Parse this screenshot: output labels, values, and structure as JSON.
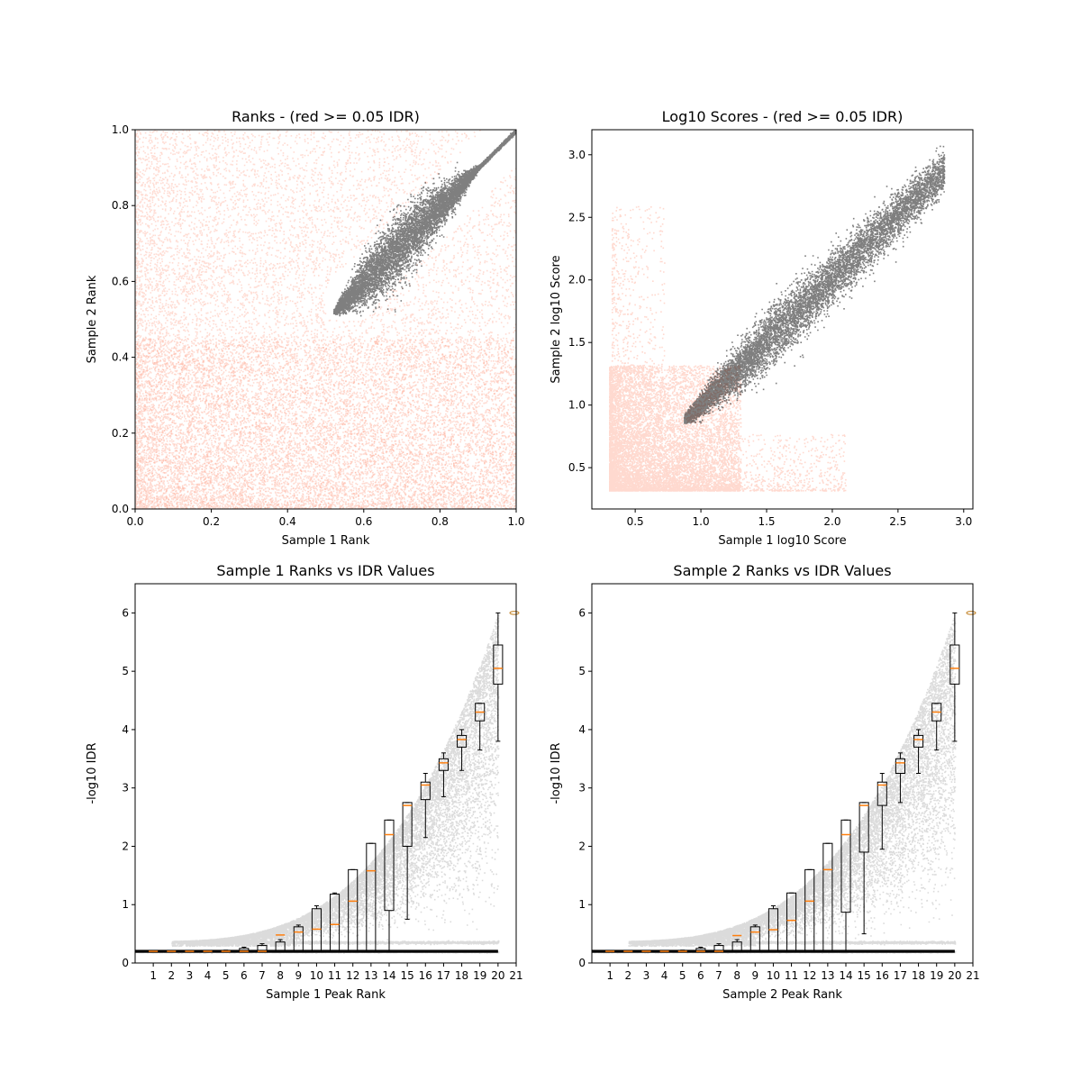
{
  "colors": {
    "red": "#FF9275",
    "black": "#000000",
    "median": "#FF7F0E",
    "flier": "#C07F20"
  },
  "chart_data": [
    {
      "type": "scatter",
      "title": "Ranks - (red >= 0.05 IDR)",
      "xlabel": "Sample 1 Rank",
      "ylabel": "Sample 2 Rank",
      "xlim": [
        0,
        1
      ],
      "ylim": [
        0,
        1
      ],
      "xticks": [
        "0.0",
        "0.2",
        "0.4",
        "0.6",
        "0.8",
        "1.0"
      ],
      "yticks": [
        "0.0",
        "0.2",
        "0.4",
        "0.6",
        "0.8",
        "1.0"
      ],
      "series": [
        {
          "color": "red",
          "region": "broad cloud, densest toward low ranks, x 0-1, y 0-1"
        },
        {
          "color": "black",
          "region": "tapering band from (0.52, 0.52) to (1.0, 1.0)"
        }
      ]
    },
    {
      "type": "scatter",
      "title": "Log10 Scores - (red >= 0.05 IDR)",
      "xlabel": "Sample 1 log10 Score",
      "ylabel": "Sample 2 log10 Score",
      "xlim": [
        0.17,
        3.07
      ],
      "ylim": [
        0.17,
        3.2
      ],
      "xticks": [
        "0.5",
        "1.0",
        "1.5",
        "2.0",
        "2.5",
        "3.0"
      ],
      "yticks": [
        "0.5",
        "1.0",
        "1.5",
        "2.0",
        "2.5",
        "3.0"
      ],
      "series": [
        {
          "color": "red",
          "region": "dense block x 0.3-1.3, y 0.32-1.4 plus sparse stripes"
        },
        {
          "color": "black",
          "region": "band from (0.87, 0.88) to (2.85, 2.9)"
        }
      ]
    },
    {
      "type": "box",
      "title": "Sample 1 Ranks vs IDR Values",
      "xlabel": "Sample 1 Peak Rank",
      "ylabel": "-log10 IDR",
      "xlim": [
        0,
        21
      ],
      "ylim": [
        0,
        6.5
      ],
      "xticks": [
        "1",
        "2",
        "3",
        "4",
        "5",
        "6",
        "7",
        "8",
        "9",
        "10",
        "11",
        "12",
        "13",
        "14",
        "15",
        "16",
        "17",
        "18",
        "19",
        "20",
        "21"
      ],
      "yticks": [
        "0",
        "1",
        "2",
        "3",
        "4",
        "5",
        "6"
      ],
      "medians": [
        0.2,
        0.2,
        0.2,
        0.2,
        0.2,
        0.2,
        0.2,
        0.48,
        0.53,
        0.58,
        0.66,
        1.06,
        1.58,
        2.2,
        2.7,
        3.05,
        3.43,
        3.83,
        4.3,
        5.05
      ],
      "q1": [
        0.2,
        0.2,
        0.2,
        0.2,
        0.2,
        0.2,
        0.2,
        0.2,
        0.2,
        0.2,
        0.2,
        0.2,
        0.2,
        0.9,
        2.0,
        2.8,
        3.3,
        3.7,
        4.15,
        4.78
      ],
      "q3": [
        0.2,
        0.2,
        0.2,
        0.2,
        0.21,
        0.25,
        0.3,
        0.36,
        0.62,
        0.93,
        1.18,
        1.6,
        2.05,
        2.45,
        2.75,
        3.1,
        3.5,
        3.9,
        4.45,
        5.45
      ],
      "whisker_low": [
        0.2,
        0.2,
        0.2,
        0.2,
        0.2,
        0.2,
        0.2,
        0.2,
        0.2,
        0.2,
        0.2,
        0.2,
        0.2,
        0.2,
        0.75,
        2.15,
        2.85,
        3.3,
        3.65,
        3.8
      ],
      "whisker_high": [
        0.2,
        0.2,
        0.2,
        0.2,
        0.22,
        0.27,
        0.33,
        0.4,
        0.65,
        0.98,
        1.2,
        1.6,
        2.05,
        2.45,
        2.75,
        3.25,
        3.6,
        4.0,
        4.45,
        6.0
      ]
    },
    {
      "type": "box",
      "title": "Sample 2 Ranks vs IDR Values",
      "xlabel": "Sample 2 Peak Rank",
      "ylabel": "-log10 IDR",
      "xlim": [
        0,
        21
      ],
      "ylim": [
        0,
        6.5
      ],
      "xticks": [
        "1",
        "2",
        "3",
        "4",
        "5",
        "6",
        "7",
        "8",
        "9",
        "10",
        "11",
        "12",
        "13",
        "14",
        "15",
        "16",
        "17",
        "18",
        "19",
        "20",
        "21"
      ],
      "yticks": [
        "0",
        "1",
        "2",
        "3",
        "4",
        "5",
        "6"
      ],
      "medians": [
        0.2,
        0.2,
        0.2,
        0.2,
        0.2,
        0.2,
        0.2,
        0.47,
        0.53,
        0.57,
        0.73,
        1.06,
        1.6,
        2.2,
        2.7,
        3.05,
        3.43,
        3.83,
        4.3,
        5.05
      ],
      "q1": [
        0.2,
        0.2,
        0.2,
        0.2,
        0.2,
        0.2,
        0.2,
        0.2,
        0.2,
        0.2,
        0.2,
        0.2,
        0.2,
        0.87,
        1.9,
        2.7,
        3.25,
        3.7,
        4.15,
        4.78
      ],
      "q3": [
        0.2,
        0.2,
        0.2,
        0.2,
        0.21,
        0.25,
        0.3,
        0.36,
        0.62,
        0.93,
        1.2,
        1.6,
        2.05,
        2.45,
        2.75,
        3.1,
        3.5,
        3.9,
        4.45,
        5.45
      ],
      "whisker_low": [
        0.2,
        0.2,
        0.2,
        0.2,
        0.2,
        0.2,
        0.2,
        0.2,
        0.2,
        0.2,
        0.2,
        0.2,
        0.2,
        0.2,
        0.5,
        1.95,
        2.75,
        3.25,
        3.65,
        3.8
      ],
      "whisker_high": [
        0.2,
        0.2,
        0.2,
        0.2,
        0.22,
        0.27,
        0.33,
        0.4,
        0.65,
        0.98,
        1.2,
        1.6,
        2.05,
        2.45,
        2.75,
        3.25,
        3.6,
        4.0,
        4.45,
        6.0
      ]
    }
  ]
}
